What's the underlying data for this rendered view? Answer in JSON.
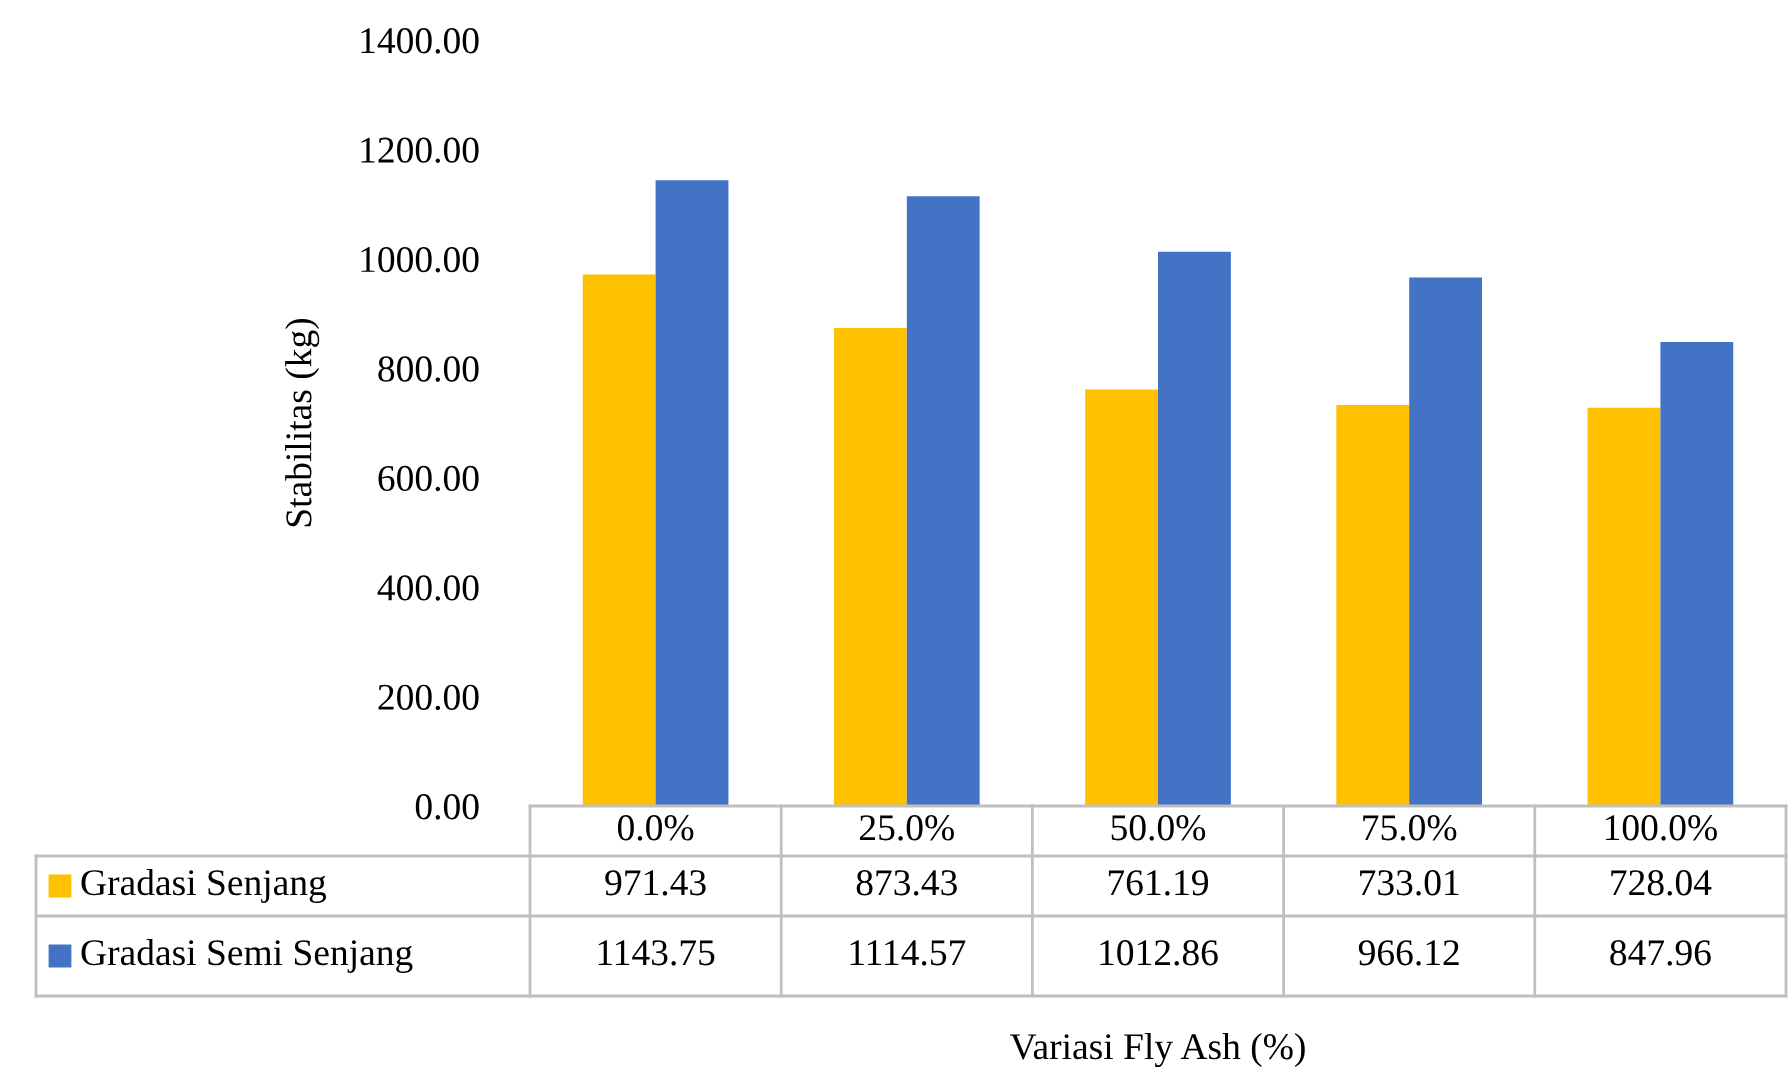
{
  "chart_data": {
    "type": "bar",
    "ylabel": "Stabilitas (kg)",
    "annotations": [
      "Variasi Fly Ash (%)"
    ],
    "categories": [
      "0.0%",
      "25.0%",
      "50.0%",
      "75.0%",
      "100.0%"
    ],
    "series": [
      {
        "name": "Gradasi Senjang",
        "color": "#ffc000",
        "values": [
          971.43,
          873.43,
          761.19,
          733.01,
          728.04
        ]
      },
      {
        "name": "Gradasi Semi Senjang",
        "color": "#4472c4",
        "values": [
          1143.75,
          1114.57,
          1012.86,
          966.12,
          847.96
        ]
      }
    ],
    "ylim": [
      0,
      1400
    ],
    "yticks": [
      {
        "value": 0,
        "label": "0.00"
      },
      {
        "value": 200,
        "label": "200.00"
      },
      {
        "value": 400,
        "label": "400.00"
      },
      {
        "value": 600,
        "label": "600.00"
      },
      {
        "value": 800,
        "label": "800.00"
      },
      {
        "value": 1000,
        "label": "1000.00"
      },
      {
        "value": 1200,
        "label": "1200.00"
      },
      {
        "value": 1400,
        "label": "1400.00"
      }
    ],
    "data_labels": true,
    "grid": false,
    "legend": "bottom"
  }
}
